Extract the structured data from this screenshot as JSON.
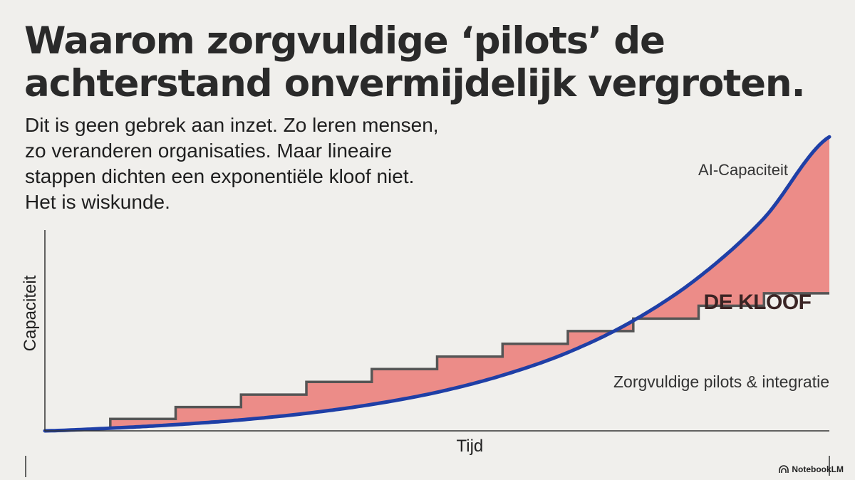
{
  "slide": {
    "title_lines": [
      "Waarom zorgvuldige ‘pilots’ de",
      "achterstand onvermijdelijk vergroten."
    ],
    "subtitle_lines": [
      "Dit is geen gebrek aan inzet. Zo leren mensen,",
      "zo veranderen organisaties. Maar lineaire",
      "stappen dichten een exponentiële kloof niet.",
      "Het is wiskunde."
    ],
    "brand": "NotebookLM",
    "brand_icon": "notebooklm-logo-icon"
  },
  "chart_data": {
    "type": "line",
    "xlabel": "Tijd",
    "ylabel": "Capaciteit",
    "xlim": [
      0,
      12
    ],
    "ylim": [
      0,
      1
    ],
    "series": [
      {
        "name": "AI-Capaciteit",
        "kind": "curve",
        "color": "#1f3fa6",
        "x": [
          0,
          1,
          2,
          3,
          4,
          5,
          6,
          7,
          8,
          9,
          10,
          11,
          12
        ],
        "y": [
          0.0,
          0.009,
          0.021,
          0.037,
          0.059,
          0.089,
          0.13,
          0.187,
          0.264,
          0.371,
          0.517,
          0.716,
          0.99
        ]
      },
      {
        "name": "Zorgvuldige pilots & integratie",
        "kind": "step",
        "color": "#555555",
        "x": [
          1,
          2,
          3,
          4,
          5,
          6,
          7,
          8,
          9,
          10,
          11
        ],
        "y": [
          0.04,
          0.08,
          0.122,
          0.165,
          0.208,
          0.25,
          0.293,
          0.336,
          0.378,
          0.421,
          0.463
        ]
      }
    ],
    "gap_label": "DE KLOOF",
    "gap_fill": "#ec8c88",
    "grid": false
  }
}
